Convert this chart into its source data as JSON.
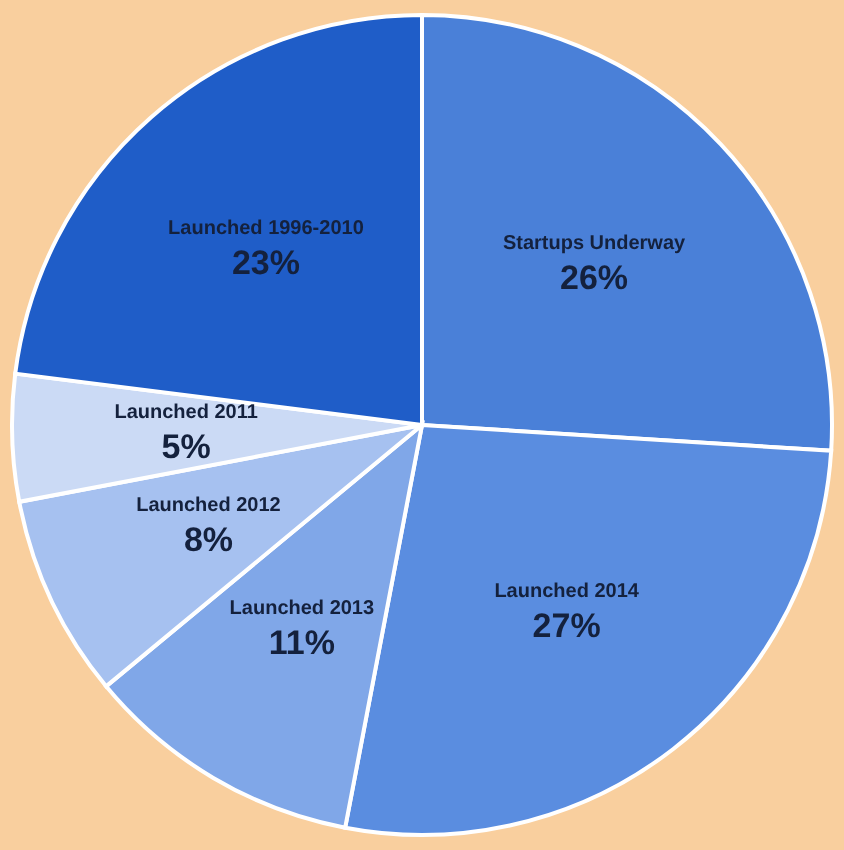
{
  "chart_data": {
    "type": "pie",
    "categories": [
      "Startups Underway",
      "Launched 2014",
      "Launched 2013",
      "Launched 2012",
      "Launched 2011",
      "Launched 1996-2010"
    ],
    "values": [
      26,
      27,
      11,
      8,
      5,
      23
    ],
    "colors": [
      "#4a80d8",
      "#5a8de0",
      "#80a7e8",
      "#a6c1f0",
      "#cbdaf5",
      "#1f5dc8"
    ],
    "value_labels": [
      "26%",
      "27%",
      "11%",
      "8%",
      "5%",
      "23%"
    ]
  }
}
